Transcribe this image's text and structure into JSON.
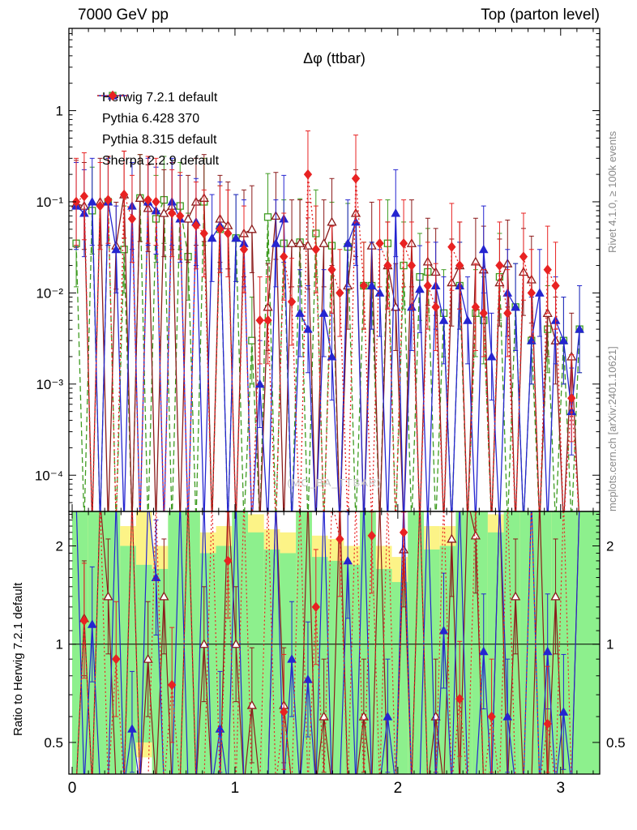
{
  "header": {
    "left": "7000 GeV pp",
    "right": "Top (parton level)"
  },
  "side_captions": {
    "top": "Rivet 4.1.0, ≥ 100k events",
    "bottom": "mcplots.cern.ch [arXiv:2401.10621]"
  },
  "watermark": "(MC_BA_TTBAR)",
  "ratio_ylabel": "Ratio to Herwig 7.2.1 default",
  "chart_data": {
    "type": "line",
    "title": "Δφ (ttbar)",
    "xlabel": "",
    "ylabel": "",
    "xlim": [
      -0.02,
      3.24
    ],
    "x_ticks": [
      0,
      1,
      2,
      3
    ],
    "x_minor_step": 0.1,
    "main_ylim": [
      4e-05,
      8
    ],
    "main_yticks": [
      1,
      0.1,
      0.01,
      0.001,
      0.0001
    ],
    "main_ytick_labels": [
      "1",
      "10⁻¹",
      "10⁻²",
      "10⁻³",
      "10⁻⁴"
    ],
    "ratio_ylim": [
      0.4,
      2.55
    ],
    "ratio_yticks": [
      0.5,
      1,
      2
    ],
    "ratio_ytick_labels": [
      "0.5",
      "1",
      "2"
    ],
    "legend_position": "top-left",
    "grid": false,
    "x": [
      0.025,
      0.074,
      0.123,
      0.172,
      0.221,
      0.27,
      0.319,
      0.368,
      0.417,
      0.466,
      0.515,
      0.564,
      0.613,
      0.663,
      0.712,
      0.761,
      0.81,
      0.859,
      0.908,
      0.957,
      1.006,
      1.055,
      1.104,
      1.153,
      1.202,
      1.251,
      1.3,
      1.349,
      1.399,
      1.448,
      1.497,
      1.546,
      1.595,
      1.644,
      1.693,
      1.742,
      1.791,
      1.84,
      1.889,
      1.938,
      1.987,
      2.036,
      2.085,
      2.135,
      2.184,
      2.233,
      2.282,
      2.331,
      2.38,
      2.429,
      2.478,
      2.527,
      2.576,
      2.625,
      2.674,
      2.723,
      2.772,
      2.821,
      2.871,
      2.92,
      2.969,
      3.018,
      3.067,
      3.116
    ],
    "series": [
      {
        "name": "Herwig 7.2.1 default",
        "color": "#3e9b20",
        "dash": "dashed",
        "marker": "square-open",
        "values": [
          0.035,
          0,
          0.08,
          0,
          0.1,
          0,
          0.03,
          0,
          0.11,
          0,
          0.065,
          0.105,
          0,
          0.09,
          0.025,
          0,
          0.1,
          0,
          0.05,
          0,
          0.04,
          0,
          0.003,
          0,
          0.068,
          0,
          0.035,
          0,
          0.036,
          0,
          0.045,
          0,
          0.033,
          0,
          0.032,
          0,
          0.012,
          0.012,
          0,
          0.035,
          0,
          0.02,
          0,
          0.015,
          0.017,
          0,
          0.006,
          0,
          0.012,
          0,
          0.006,
          0.005,
          0,
          0.015,
          0,
          0.007,
          0,
          0.003,
          0,
          0.004,
          0,
          0.003,
          0,
          0.004
        ],
        "ratio": null
      },
      {
        "name": "Pythia 6.428 370",
        "color": "#8b1a1a",
        "dash": "solid",
        "marker": "triangle-open",
        "values": [
          0.095,
          0.09,
          0,
          0.1,
          0,
          0.033,
          0.12,
          0,
          0.11,
          0.085,
          0,
          0.075,
          0.09,
          0,
          0.065,
          0.1,
          0.11,
          0,
          0.065,
          0.055,
          0,
          0.045,
          0.05,
          0,
          0.007,
          0.07,
          0,
          0.035,
          0.035,
          0.033,
          0,
          0.035,
          0.06,
          0,
          0.012,
          0.075,
          0,
          0.033,
          0,
          0.02,
          0.007,
          0,
          0.035,
          0,
          0.022,
          0.017,
          0,
          0.013,
          0.02,
          0,
          0.022,
          0.018,
          0,
          0.013,
          0.021,
          0,
          0.017,
          0.014,
          0,
          0.006,
          0.003,
          0,
          0.002,
          0
        ],
        "ratio": [
          0,
          1.2,
          0,
          4,
          1.4,
          0,
          0,
          4,
          0,
          0.9,
          0,
          1.4,
          0,
          0,
          4,
          0,
          1.0,
          0,
          0,
          4,
          1.0,
          0,
          0.65,
          0,
          0,
          4,
          0.65,
          0,
          0,
          4,
          0,
          0.6,
          0,
          4,
          0,
          0,
          0.6,
          0,
          4,
          0,
          0,
          1.95,
          0,
          4,
          0,
          0.6,
          0,
          2.1,
          0,
          4,
          2.15,
          0,
          0,
          4,
          0,
          1.4,
          0,
          0,
          4,
          0,
          1.4,
          0,
          0,
          4
        ]
      },
      {
        "name": "Pythia 8.315 default",
        "color": "#2525d0",
        "dash": "solid",
        "marker": "triangle-filled",
        "values": [
          0.09,
          0.075,
          0.1,
          0,
          0.1,
          0.03,
          0,
          0.09,
          0,
          0.1,
          0.08,
          0,
          0.1,
          0.065,
          0,
          0.06,
          0,
          0.04,
          0.055,
          0,
          0.04,
          0.035,
          0,
          0.001,
          0,
          0.035,
          0.065,
          0,
          0.006,
          0.004,
          0,
          0.006,
          0.002,
          0,
          0.035,
          0.06,
          0,
          0.012,
          0.01,
          0,
          0.075,
          0,
          0.007,
          0.011,
          0,
          0.012,
          0.005,
          0,
          0.012,
          0.005,
          0,
          0.03,
          0.002,
          0,
          0.01,
          0.007,
          0,
          0.003,
          0.01,
          0,
          0.005,
          0.003,
          0.0005,
          0.004
        ],
        "ratio": [
          4,
          0,
          1.15,
          0,
          0,
          4,
          0,
          0.55,
          0,
          4,
          1.6,
          0,
          0,
          4,
          0,
          0,
          4,
          0,
          0.55,
          0,
          4,
          0,
          0,
          0.35,
          0,
          4,
          0,
          0.9,
          0,
          0.78,
          0,
          4,
          0,
          0,
          1.8,
          0,
          4,
          0,
          0,
          0.6,
          0,
          4,
          0,
          0,
          4,
          0,
          1.1,
          0,
          4,
          0,
          0,
          0.95,
          0,
          4,
          0.6,
          0,
          0,
          4,
          0,
          0.95,
          0,
          0.62,
          0,
          4
        ]
      },
      {
        "name": "Sherpa 2.2.9 default",
        "color": "#e82222",
        "dash": "dotted",
        "marker": "diamond-filled",
        "values": [
          0.1,
          0.115,
          0,
          0.09,
          0.105,
          0,
          0.12,
          0.065,
          0,
          0.105,
          0.1,
          0,
          0.075,
          0.07,
          0,
          0.055,
          0.045,
          0,
          0.05,
          0.045,
          0,
          0.03,
          0,
          0.005,
          0.005,
          0,
          0.025,
          0.008,
          0,
          0.2,
          0.03,
          0,
          0.018,
          0.01,
          0,
          0.18,
          0.012,
          0,
          0.035,
          0.02,
          0,
          0.035,
          0.02,
          0,
          0.012,
          0.007,
          0,
          0.032,
          0.02,
          0,
          0.007,
          0.006,
          0,
          0.02,
          0.006,
          0,
          0.025,
          0.01,
          0,
          0.018,
          0.012,
          0,
          0.0007,
          0
        ],
        "ratio": [
          0,
          1.18,
          0,
          4,
          0,
          0.9,
          0,
          4,
          0,
          0,
          4,
          0,
          0.75,
          0,
          4,
          0,
          0,
          4,
          0,
          1.8,
          0,
          4,
          0,
          0,
          4,
          0,
          0.62,
          0,
          4,
          0,
          1.3,
          0,
          4,
          2.1,
          0,
          4,
          0,
          2.15,
          0,
          4,
          0,
          2.2,
          0,
          4,
          0,
          0,
          4,
          0,
          0.68,
          0,
          4,
          0,
          0.6,
          0,
          4,
          0,
          0,
          4,
          0,
          0.57,
          0,
          4,
          0,
          0
        ]
      }
    ],
    "ratio_bands": {
      "n_bins": 32,
      "x_start": 0,
      "x_end": 3.1416,
      "yellow_color": "#fcf387",
      "green_color": "#8df08d",
      "yellow_lo": [
        0.4,
        0.4,
        0.4,
        0.4,
        0.45,
        0.4,
        0.4,
        0.4,
        0.4,
        0.4,
        0.4,
        0.4,
        0.4,
        0.4,
        0.4,
        0.4,
        0.4,
        0.4,
        0.4,
        0.4,
        0.4,
        0.4,
        0.4,
        0.4,
        0.4,
        0.4,
        0.4,
        0.4,
        0.4,
        0.4,
        0.4,
        0.4
      ],
      "yellow_hi": [
        2.55,
        2.55,
        2.55,
        2.3,
        2.55,
        2.0,
        2.55,
        2.55,
        2.2,
        2.3,
        2.55,
        2.5,
        2.25,
        2.2,
        2.55,
        2.15,
        2.1,
        2.0,
        2.55,
        2.0,
        1.85,
        2.55,
        2.3,
        2.3,
        2.55,
        2.55,
        2.5,
        2.55,
        2.55,
        2.55,
        2.55,
        2.55
      ],
      "green_lo": [
        0.4,
        0.4,
        0.4,
        0.4,
        0.5,
        0.4,
        0.4,
        0.4,
        0.4,
        0.4,
        0.4,
        0.4,
        0.4,
        0.4,
        0.4,
        0.4,
        0.4,
        0.4,
        0.4,
        0.4,
        0.4,
        0.4,
        0.4,
        0.4,
        0.4,
        0.4,
        0.4,
        0.4,
        0.4,
        0.4,
        0.4,
        0.4
      ],
      "green_hi": [
        2.55,
        2.55,
        2.55,
        2.0,
        1.75,
        1.7,
        2.55,
        2.55,
        1.9,
        2.0,
        2.55,
        2.2,
        1.95,
        1.9,
        2.55,
        1.85,
        1.8,
        1.75,
        2.55,
        1.7,
        1.55,
        2.55,
        1.95,
        2.0,
        2.55,
        2.55,
        2.2,
        2.55,
        2.55,
        2.55,
        2.55,
        2.55
      ]
    }
  }
}
